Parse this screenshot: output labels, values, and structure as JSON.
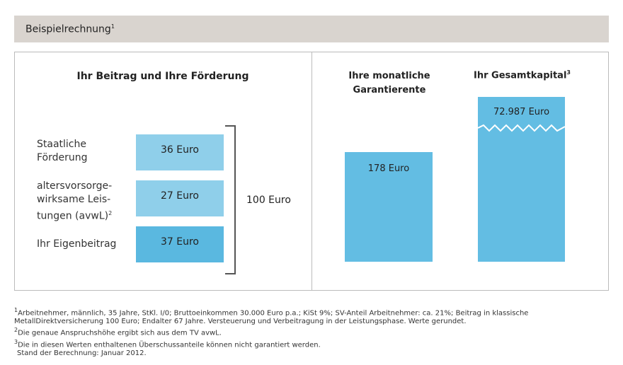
{
  "header": {
    "title": "Beispielrechnung",
    "sup": "1"
  },
  "left": {
    "title": "Ihr Beitrag und Ihre Förderung",
    "items": [
      {
        "label": "Staatliche Förderung",
        "value": "36 Euro",
        "amount": 36,
        "color": "#8fcfea"
      },
      {
        "label": "altersvorsorge-wirksame Leis-tungen (avwL)",
        "sup": "2",
        "value": "27 Euro",
        "amount": 27,
        "color": "#8fcfea"
      },
      {
        "label": "Ihr Eigenbeitrag",
        "value": "37 Euro",
        "amount": 37,
        "color": "#5ab8e0"
      }
    ],
    "total": "100 Euro"
  },
  "chart_data": {
    "type": "bar",
    "categories": [
      "Ihre monatliche Garantierente",
      "Ihr Gesamtkapital"
    ],
    "values": [
      178,
      72987
    ],
    "value_labels": [
      "178 Euro",
      "72.987 Euro"
    ],
    "axis_break": [
      false,
      true
    ],
    "color": "#63bde3",
    "title_sup": [
      "",
      "3"
    ]
  },
  "footnotes": [
    {
      "n": "1",
      "text": "Arbeitnehmer, männlich, 35 Jahre, StKl. I/0; Bruttoeinkommen 30.000 Euro p.a.; KiSt 9%; SV-Anteil Arbeitnehmer: ca. 21%; Beitrag in klassische MetallDirektversicherung 100 Euro; Endalter 67 Jahre. Versteuerung und Verbeitragung in der Leistungsphase. Werte gerundet."
    },
    {
      "n": "2",
      "text": "Die genaue Anspruchshöhe ergibt sich aus dem TV avwL."
    },
    {
      "n": "3",
      "text": "Die in diesen Werten enthaltenen Überschussanteile können nicht garantiert werden."
    }
  ],
  "stand": "Stand der Berechnung: Januar 2012."
}
